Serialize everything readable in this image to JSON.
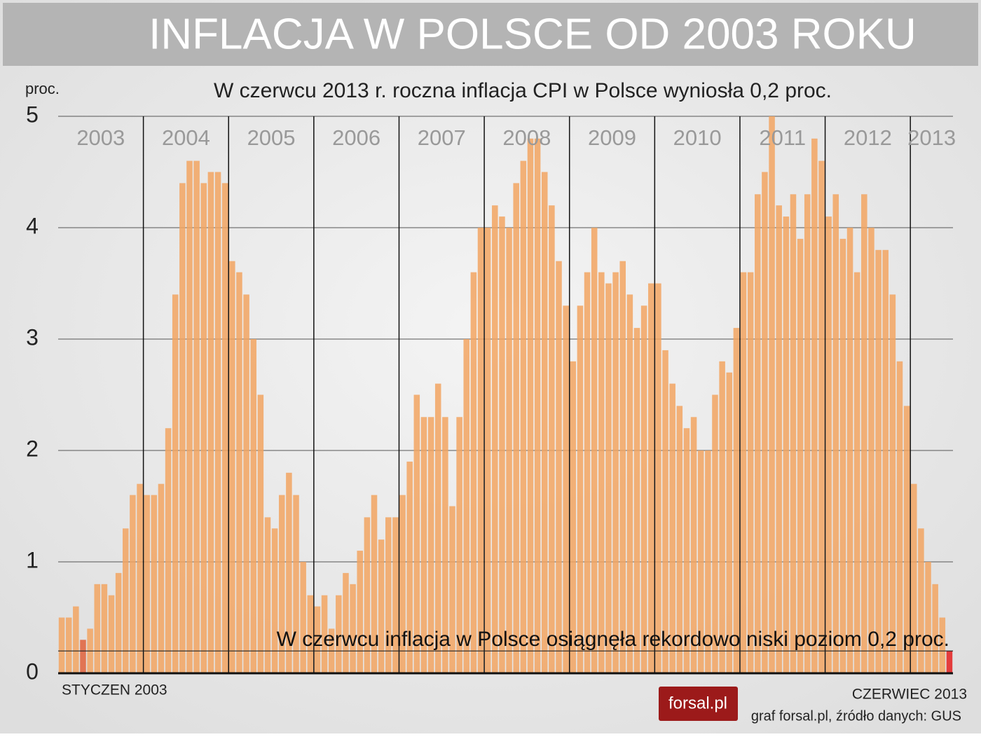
{
  "chart_data": {
    "type": "bar",
    "title": "INFLACJA W POLSCE OD 2003 ROKU",
    "subtitle": "W czerwcu 2013 r. roczna inflacja CPI w Polsce wyniosła 0,2 proc.",
    "y_label": "proc.",
    "annotation": "W czerwcu inflacja w Polsce osiągnęła rekordowo niski poziom 0,2 proc.",
    "reference_line": 0.2,
    "start_label": "STYCZEN 2003",
    "end_label": "CZERWIEC 2013",
    "year_labels": [
      "2003",
      "2004",
      "2005",
      "2006",
      "2007",
      "2008",
      "2009",
      "2010",
      "2011",
      "2012",
      "2013"
    ],
    "values": [
      0.5,
      0.5,
      0.6,
      0.3,
      0.4,
      0.8,
      0.8,
      0.7,
      0.9,
      1.3,
      1.6,
      1.7,
      1.6,
      1.6,
      1.7,
      2.2,
      3.4,
      4.4,
      4.6,
      4.6,
      4.4,
      4.5,
      4.5,
      4.4,
      3.7,
      3.6,
      3.4,
      3.0,
      2.5,
      1.4,
      1.3,
      1.6,
      1.8,
      1.6,
      1.0,
      0.7,
      0.6,
      0.7,
      0.4,
      0.7,
      0.9,
      0.8,
      1.1,
      1.4,
      1.6,
      1.2,
      1.4,
      1.4,
      1.6,
      1.9,
      2.5,
      2.3,
      2.3,
      2.6,
      2.3,
      1.5,
      2.3,
      3.0,
      3.6,
      4.0,
      4.0,
      4.2,
      4.1,
      4.0,
      4.4,
      4.6,
      4.8,
      4.8,
      4.5,
      4.2,
      3.7,
      3.3,
      2.8,
      3.3,
      3.6,
      4.0,
      3.6,
      3.5,
      3.6,
      3.7,
      3.4,
      3.1,
      3.3,
      3.5,
      3.5,
      2.9,
      2.6,
      2.4,
      2.2,
      2.3,
      2.0,
      2.0,
      2.5,
      2.8,
      2.7,
      3.1,
      3.6,
      3.6,
      4.3,
      4.5,
      5.0,
      4.2,
      4.1,
      4.3,
      3.9,
      4.3,
      4.8,
      4.6,
      4.1,
      4.3,
      3.9,
      4.0,
      3.6,
      4.3,
      4.0,
      3.8,
      3.8,
      3.4,
      2.8,
      2.4,
      1.7,
      1.3,
      1.0,
      0.8,
      0.5,
      0.2
    ],
    "colors": [
      "#f2a461",
      "#f2a461",
      "#f2a461",
      "#e0603a",
      "#f2a461",
      "#f2a461",
      "#f2a461",
      "#f2a461",
      "#f2a461",
      "#f2a461",
      "#f2a461",
      "#f2a461",
      "#f2a461",
      "#f2a461",
      "#f2a461",
      "#f2a461",
      "#f2a461",
      "#f2a461",
      "#f2a461",
      "#f2a461",
      "#f2a461",
      "#f2a461",
      "#f2a461",
      "#f2a461",
      "#f2a461",
      "#f2a461",
      "#f2a461",
      "#f2a461",
      "#f2a461",
      "#f2a461",
      "#f2a461",
      "#f2a461",
      "#f2a461",
      "#f2a461",
      "#f2a461",
      "#f2a461",
      "#f2a461",
      "#f2a461",
      "#f2a461",
      "#f2a461",
      "#f2a461",
      "#f2a461",
      "#f2a461",
      "#f2a461",
      "#f2a461",
      "#f2a461",
      "#f2a461",
      "#f2a461",
      "#f2a461",
      "#f2a461",
      "#f2a461",
      "#f2a461",
      "#f2a461",
      "#f2a461",
      "#f2a461",
      "#f2a461",
      "#f2a461",
      "#f2a461",
      "#f2a461",
      "#f2a461",
      "#f2a461",
      "#f2a461",
      "#f2a461",
      "#f2a461",
      "#f2a461",
      "#f2a461",
      "#f2a461",
      "#f2a461",
      "#f2a461",
      "#f2a461",
      "#f2a461",
      "#f2a461",
      "#f2a461",
      "#f2a461",
      "#f2a461",
      "#f2a461",
      "#f2a461",
      "#f2a461",
      "#f2a461",
      "#f2a461",
      "#f2a461",
      "#f2a461",
      "#f2a461",
      "#f2a461",
      "#f2a461",
      "#f2a461",
      "#f2a461",
      "#f2a461",
      "#f2a461",
      "#f2a461",
      "#f2a461",
      "#f2a461",
      "#f2a461",
      "#f2a461",
      "#f2a461",
      "#f2a461",
      "#f2a461",
      "#f2a461",
      "#f2a461",
      "#f2a461",
      "#f2a461",
      "#f2a461",
      "#f2a461",
      "#f2a461",
      "#f2a461",
      "#f2a461",
      "#f2a461",
      "#f2a461",
      "#f2a461",
      "#f2a461",
      "#f2a461",
      "#f2a461",
      "#f2a461",
      "#f2a461",
      "#f2a461",
      "#f2a461",
      "#f2a461",
      "#f2a461",
      "#f2a461",
      "#f2a461",
      "#f2a461",
      "#f2a461",
      "#f2a461",
      "#f2a461",
      "#f2a461",
      "#e41e1e"
    ],
    "ylim": [
      0,
      5
    ],
    "yticks": [
      0,
      1,
      2,
      3,
      4,
      5
    ],
    "grid": true,
    "logo": "forsal.pl",
    "source": "graf forsal.pl, źródło danych: GUS"
  }
}
